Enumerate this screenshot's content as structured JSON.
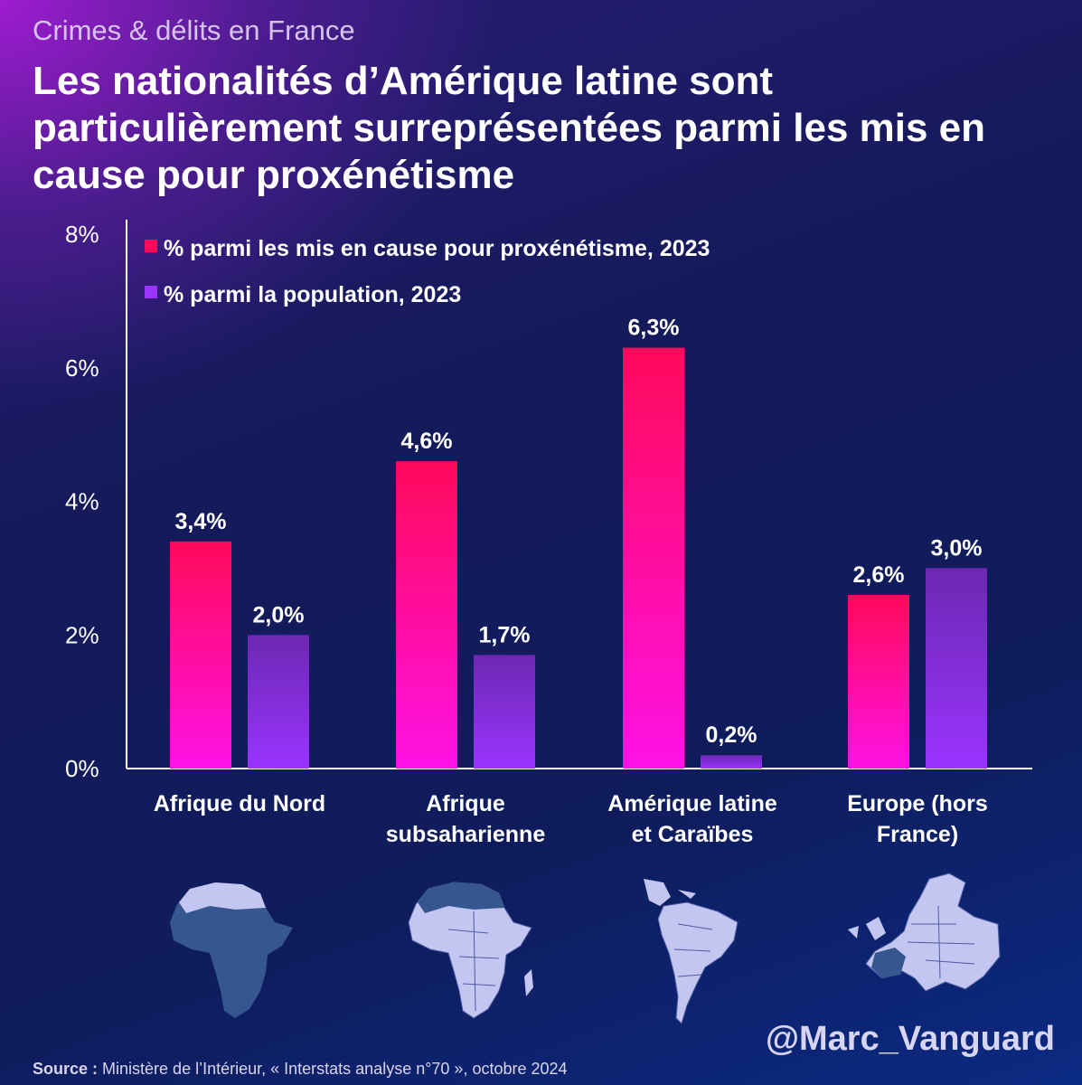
{
  "header": {
    "subtitle": "Crimes & délits en France",
    "title": "Les nationalités d’Amérique latine sont particulièrement surreprésentées parmi les mis en cause pour proxénétisme"
  },
  "colors": {
    "series1_top": "#ff0a5a",
    "series1_bottom": "#ff12e6",
    "series2_top": "#6c28b2",
    "series2_bottom": "#9a34ff",
    "map_fill": "#c4c6f2",
    "map_highlight": "#35568f"
  },
  "chart_data": {
    "type": "bar",
    "title": "",
    "categories": [
      [
        "Afrique du Nord"
      ],
      [
        "Afrique",
        "subsaharienne"
      ],
      [
        "Amérique latine",
        "et Caraïbes"
      ],
      [
        "Europe (hors",
        "France)"
      ]
    ],
    "series": [
      {
        "name": "% parmi les mis en cause pour proxénétisme, 2023",
        "values": [
          3.4,
          4.6,
          6.3,
          2.6
        ],
        "labels": [
          "3,4%",
          "4,6%",
          "6,3%",
          "2,6%"
        ]
      },
      {
        "name": "% parmi la population, 2023",
        "values": [
          2.0,
          1.7,
          0.2,
          3.0
        ],
        "labels": [
          "2,0%",
          "1,7%",
          "0,2%",
          "3,0%"
        ]
      }
    ],
    "yticks": [
      0,
      2,
      4,
      6,
      8
    ],
    "ytick_labels": [
      "0%",
      "2%",
      "4%",
      "6%",
      "8%"
    ],
    "ylim": [
      0,
      8
    ],
    "xlabel": "",
    "ylabel": "",
    "grid": false,
    "legend_position": "top-left"
  },
  "maps": [
    {
      "region": "Afrique du Nord",
      "icon": "africa-north-map-icon"
    },
    {
      "region": "Afrique subsaharienne",
      "icon": "africa-subsaharan-map-icon"
    },
    {
      "region": "Amérique latine et Caraïbes",
      "icon": "latin-america-map-icon"
    },
    {
      "region": "Europe (hors France)",
      "icon": "europe-map-icon"
    }
  ],
  "footer": {
    "watermark": "@Marc_Vanguard",
    "source_label": "Source :",
    "source_text": " Ministère de l’Intérieur, « Interstats analyse n°70 », octobre 2024"
  }
}
